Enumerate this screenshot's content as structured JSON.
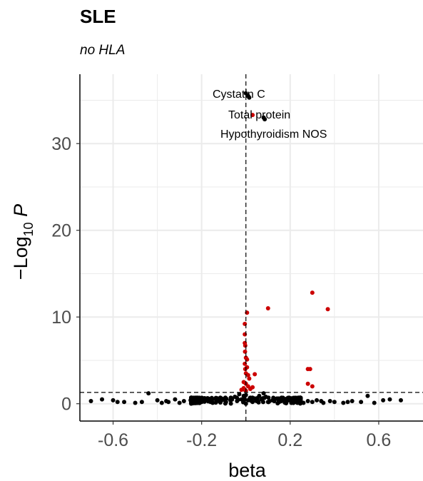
{
  "chart_data": {
    "type": "scatter",
    "title": "SLE",
    "subtitle": "no HLA",
    "xlabel": "beta",
    "ylabel": "−Log",
    "ylabel_subscript": "10",
    "ylabel_var": "P",
    "xlim": [
      -0.75,
      0.8
    ],
    "ylim": [
      -2,
      38
    ],
    "xticks": [
      -0.6,
      -0.2,
      0.2,
      0.6
    ],
    "xtick_labels": [
      "-0.6",
      "-0.2",
      "0.2",
      "0.6"
    ],
    "yticks": [
      0,
      10,
      20,
      30
    ],
    "ytick_labels": [
      "0",
      "10",
      "20",
      "30"
    ],
    "grid": true,
    "vline_x": 0,
    "hline_y": 1.3,
    "colors": {
      "significant": "#cc0000",
      "nonsignificant": "#000000",
      "grid": "#ebebeb"
    },
    "annotations": [
      {
        "label": "Cystatin C",
        "x": 0.01,
        "y": 35.5
      },
      {
        "label": "Total protein",
        "x": 0.06,
        "y": 33.2
      },
      {
        "label": "Hypothyroidism NOS",
        "x": 0.08,
        "y": 33.0
      }
    ],
    "significant_points": [
      {
        "x": 0.005,
        "y": 10.5
      },
      {
        "x": -0.005,
        "y": 9.2
      },
      {
        "x": -0.005,
        "y": 8.0
      },
      {
        "x": -0.005,
        "y": 7.0
      },
      {
        "x": -0.003,
        "y": 6.7
      },
      {
        "x": -0.004,
        "y": 6.0
      },
      {
        "x": 0.0,
        "y": 5.3
      },
      {
        "x": 0.005,
        "y": 5.1
      },
      {
        "x": -0.005,
        "y": 4.6
      },
      {
        "x": 0.005,
        "y": 4.2
      },
      {
        "x": -0.003,
        "y": 4.0
      },
      {
        "x": 0.0,
        "y": 3.5
      },
      {
        "x": 0.01,
        "y": 3.3
      },
      {
        "x": 0.015,
        "y": 2.9
      },
      {
        "x": -0.01,
        "y": 2.5
      },
      {
        "x": 0.0,
        "y": 2.3
      },
      {
        "x": 0.01,
        "y": 2.0
      },
      {
        "x": -0.01,
        "y": 1.8
      },
      {
        "x": 0.02,
        "y": 1.7
      },
      {
        "x": -0.005,
        "y": 1.6
      },
      {
        "x": 0.0,
        "y": 1.5
      },
      {
        "x": 0.03,
        "y": 1.9
      },
      {
        "x": -0.02,
        "y": 1.6
      },
      {
        "x": 0.04,
        "y": 3.4
      },
      {
        "x": 0.1,
        "y": 11.0
      },
      {
        "x": 0.3,
        "y": 12.8
      },
      {
        "x": 0.37,
        "y": 10.9
      },
      {
        "x": 0.28,
        "y": 4.0
      },
      {
        "x": 0.29,
        "y": 4.0
      },
      {
        "x": 0.28,
        "y": 2.3
      },
      {
        "x": 0.3,
        "y": 2.0
      },
      {
        "x": 0.03,
        "y": 33.3
      }
    ],
    "nonsignificant_points": [
      {
        "x": 0.0,
        "y": 35.8
      },
      {
        "x": 0.01,
        "y": 35.5
      },
      {
        "x": 0.015,
        "y": 35.3
      },
      {
        "x": 0.08,
        "y": 33.0
      },
      {
        "x": 0.085,
        "y": 32.8
      },
      {
        "x": -0.7,
        "y": 0.3
      },
      {
        "x": -0.6,
        "y": 0.4
      },
      {
        "x": -0.58,
        "y": 0.2
      },
      {
        "x": -0.5,
        "y": 0.1
      },
      {
        "x": -0.47,
        "y": 0.2
      },
      {
        "x": -0.44,
        "y": 1.2
      },
      {
        "x": -0.4,
        "y": 0.4
      },
      {
        "x": -0.38,
        "y": 0.1
      },
      {
        "x": -0.35,
        "y": 0.2
      },
      {
        "x": -0.32,
        "y": 0.5
      },
      {
        "x": -0.3,
        "y": 0.1
      },
      {
        "x": -0.28,
        "y": 0.3
      },
      {
        "x": -0.25,
        "y": 0.4
      },
      {
        "x": -0.22,
        "y": 0.1
      },
      {
        "x": -0.2,
        "y": 0.2
      },
      {
        "x": -0.18,
        "y": 0.5
      },
      {
        "x": -0.15,
        "y": 0.1
      },
      {
        "x": -0.13,
        "y": 0.3
      },
      {
        "x": -0.11,
        "y": 0.6
      },
      {
        "x": -0.09,
        "y": 0.2
      },
      {
        "x": -0.07,
        "y": 0.4
      },
      {
        "x": -0.05,
        "y": 0.8
      },
      {
        "x": -0.04,
        "y": 0.3
      },
      {
        "x": -0.03,
        "y": 1.1
      },
      {
        "x": -0.02,
        "y": 0.5
      },
      {
        "x": -0.01,
        "y": 0.9
      },
      {
        "x": 0.0,
        "y": 1.0
      },
      {
        "x": 0.01,
        "y": 0.4
      },
      {
        "x": 0.02,
        "y": 0.7
      },
      {
        "x": 0.03,
        "y": 0.2
      },
      {
        "x": 0.04,
        "y": 0.6
      },
      {
        "x": 0.05,
        "y": 0.3
      },
      {
        "x": 0.06,
        "y": 0.9
      },
      {
        "x": 0.07,
        "y": 0.5
      },
      {
        "x": 0.08,
        "y": 1.2
      },
      {
        "x": 0.1,
        "y": 0.2
      },
      {
        "x": 0.12,
        "y": 0.4
      },
      {
        "x": 0.14,
        "y": 0.6
      },
      {
        "x": 0.16,
        "y": 0.3
      },
      {
        "x": 0.18,
        "y": 0.1
      },
      {
        "x": 0.2,
        "y": 0.4
      },
      {
        "x": 0.22,
        "y": 0.2
      },
      {
        "x": 0.24,
        "y": 0.5
      },
      {
        "x": 0.26,
        "y": 0.1
      },
      {
        "x": 0.28,
        "y": 0.3
      },
      {
        "x": 0.3,
        "y": 0.2
      },
      {
        "x": 0.32,
        "y": 0.4
      },
      {
        "x": 0.35,
        "y": 0.1
      },
      {
        "x": 0.38,
        "y": 0.3
      },
      {
        "x": 0.4,
        "y": 0.2
      },
      {
        "x": 0.44,
        "y": 0.1
      },
      {
        "x": 0.48,
        "y": 0.3
      },
      {
        "x": 0.52,
        "y": 0.2
      },
      {
        "x": 0.55,
        "y": 0.9
      },
      {
        "x": 0.58,
        "y": 0.1
      },
      {
        "x": 0.62,
        "y": 0.4
      },
      {
        "x": 0.65,
        "y": 0.5
      },
      {
        "x": 0.7,
        "y": 0.4
      },
      {
        "x": -0.65,
        "y": 0.5
      },
      {
        "x": -0.55,
        "y": 0.2
      },
      {
        "x": -0.36,
        "y": 0.3
      },
      {
        "x": -0.16,
        "y": 0.2
      },
      {
        "x": 0.09,
        "y": 0.8
      },
      {
        "x": 0.15,
        "y": 0.2
      },
      {
        "x": 0.34,
        "y": 0.3
      },
      {
        "x": 0.46,
        "y": 0.2
      }
    ]
  }
}
